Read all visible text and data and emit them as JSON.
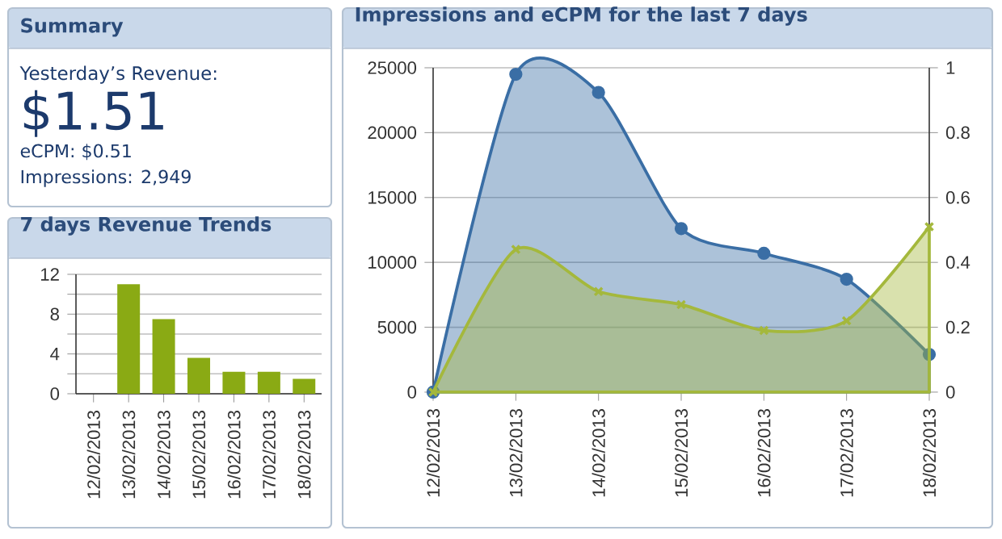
{
  "chart_data": [
    {
      "type": "other",
      "title": "Summary",
      "annotations": [
        "Yesterday’s Revenue:",
        "$1.51",
        "eCPM: $0.51",
        "Impressions: 2,949"
      ]
    },
    {
      "type": "bar",
      "title": "7 days Revenue Trends",
      "categories": [
        "12/02/2013",
        "13/02/2013",
        "14/02/2013",
        "15/02/2013",
        "16/02/2013",
        "17/02/2013",
        "18/02/2013"
      ],
      "values": [
        0,
        11.0,
        7.5,
        3.6,
        2.2,
        2.2,
        1.5
      ],
      "color": "#8aaa14",
      "ylim": [
        0,
        12
      ],
      "yticks": [
        0,
        {
          "value": 2,
          "label": null
        },
        4,
        {
          "value": 6,
          "label": null
        },
        8,
        {
          "value": 10,
          "label": null
        },
        12
      ],
      "grid": "y"
    },
    {
      "type": "area",
      "title": "Impressions and eCPM for the last 7 days",
      "categories": [
        "12/02/2013",
        "13/02/2013",
        "14/02/2013",
        "15/02/2013",
        "16/02/2013",
        "17/02/2013",
        "18/02/2013"
      ],
      "series": [
        {
          "color": "#3a6ea5",
          "values": [
            0,
            24500,
            23100,
            12600,
            10700,
            8700,
            2900
          ],
          "marker": "circle"
        },
        {
          "color": "#a4b83c",
          "values": [
            0,
            0.44,
            0.31,
            0.27,
            0.19,
            0.22,
            0.51
          ],
          "axis": "y2",
          "marker": "cross"
        }
      ],
      "ylim": [
        0,
        25000
      ],
      "yticks": [
        0,
        5000,
        10000,
        15000,
        20000,
        25000
      ],
      "y2lim": [
        0,
        1
      ],
      "y2ticks": [
        0,
        0.2,
        0.4,
        0.6,
        0.8,
        1
      ],
      "grid": "y"
    }
  ]
}
